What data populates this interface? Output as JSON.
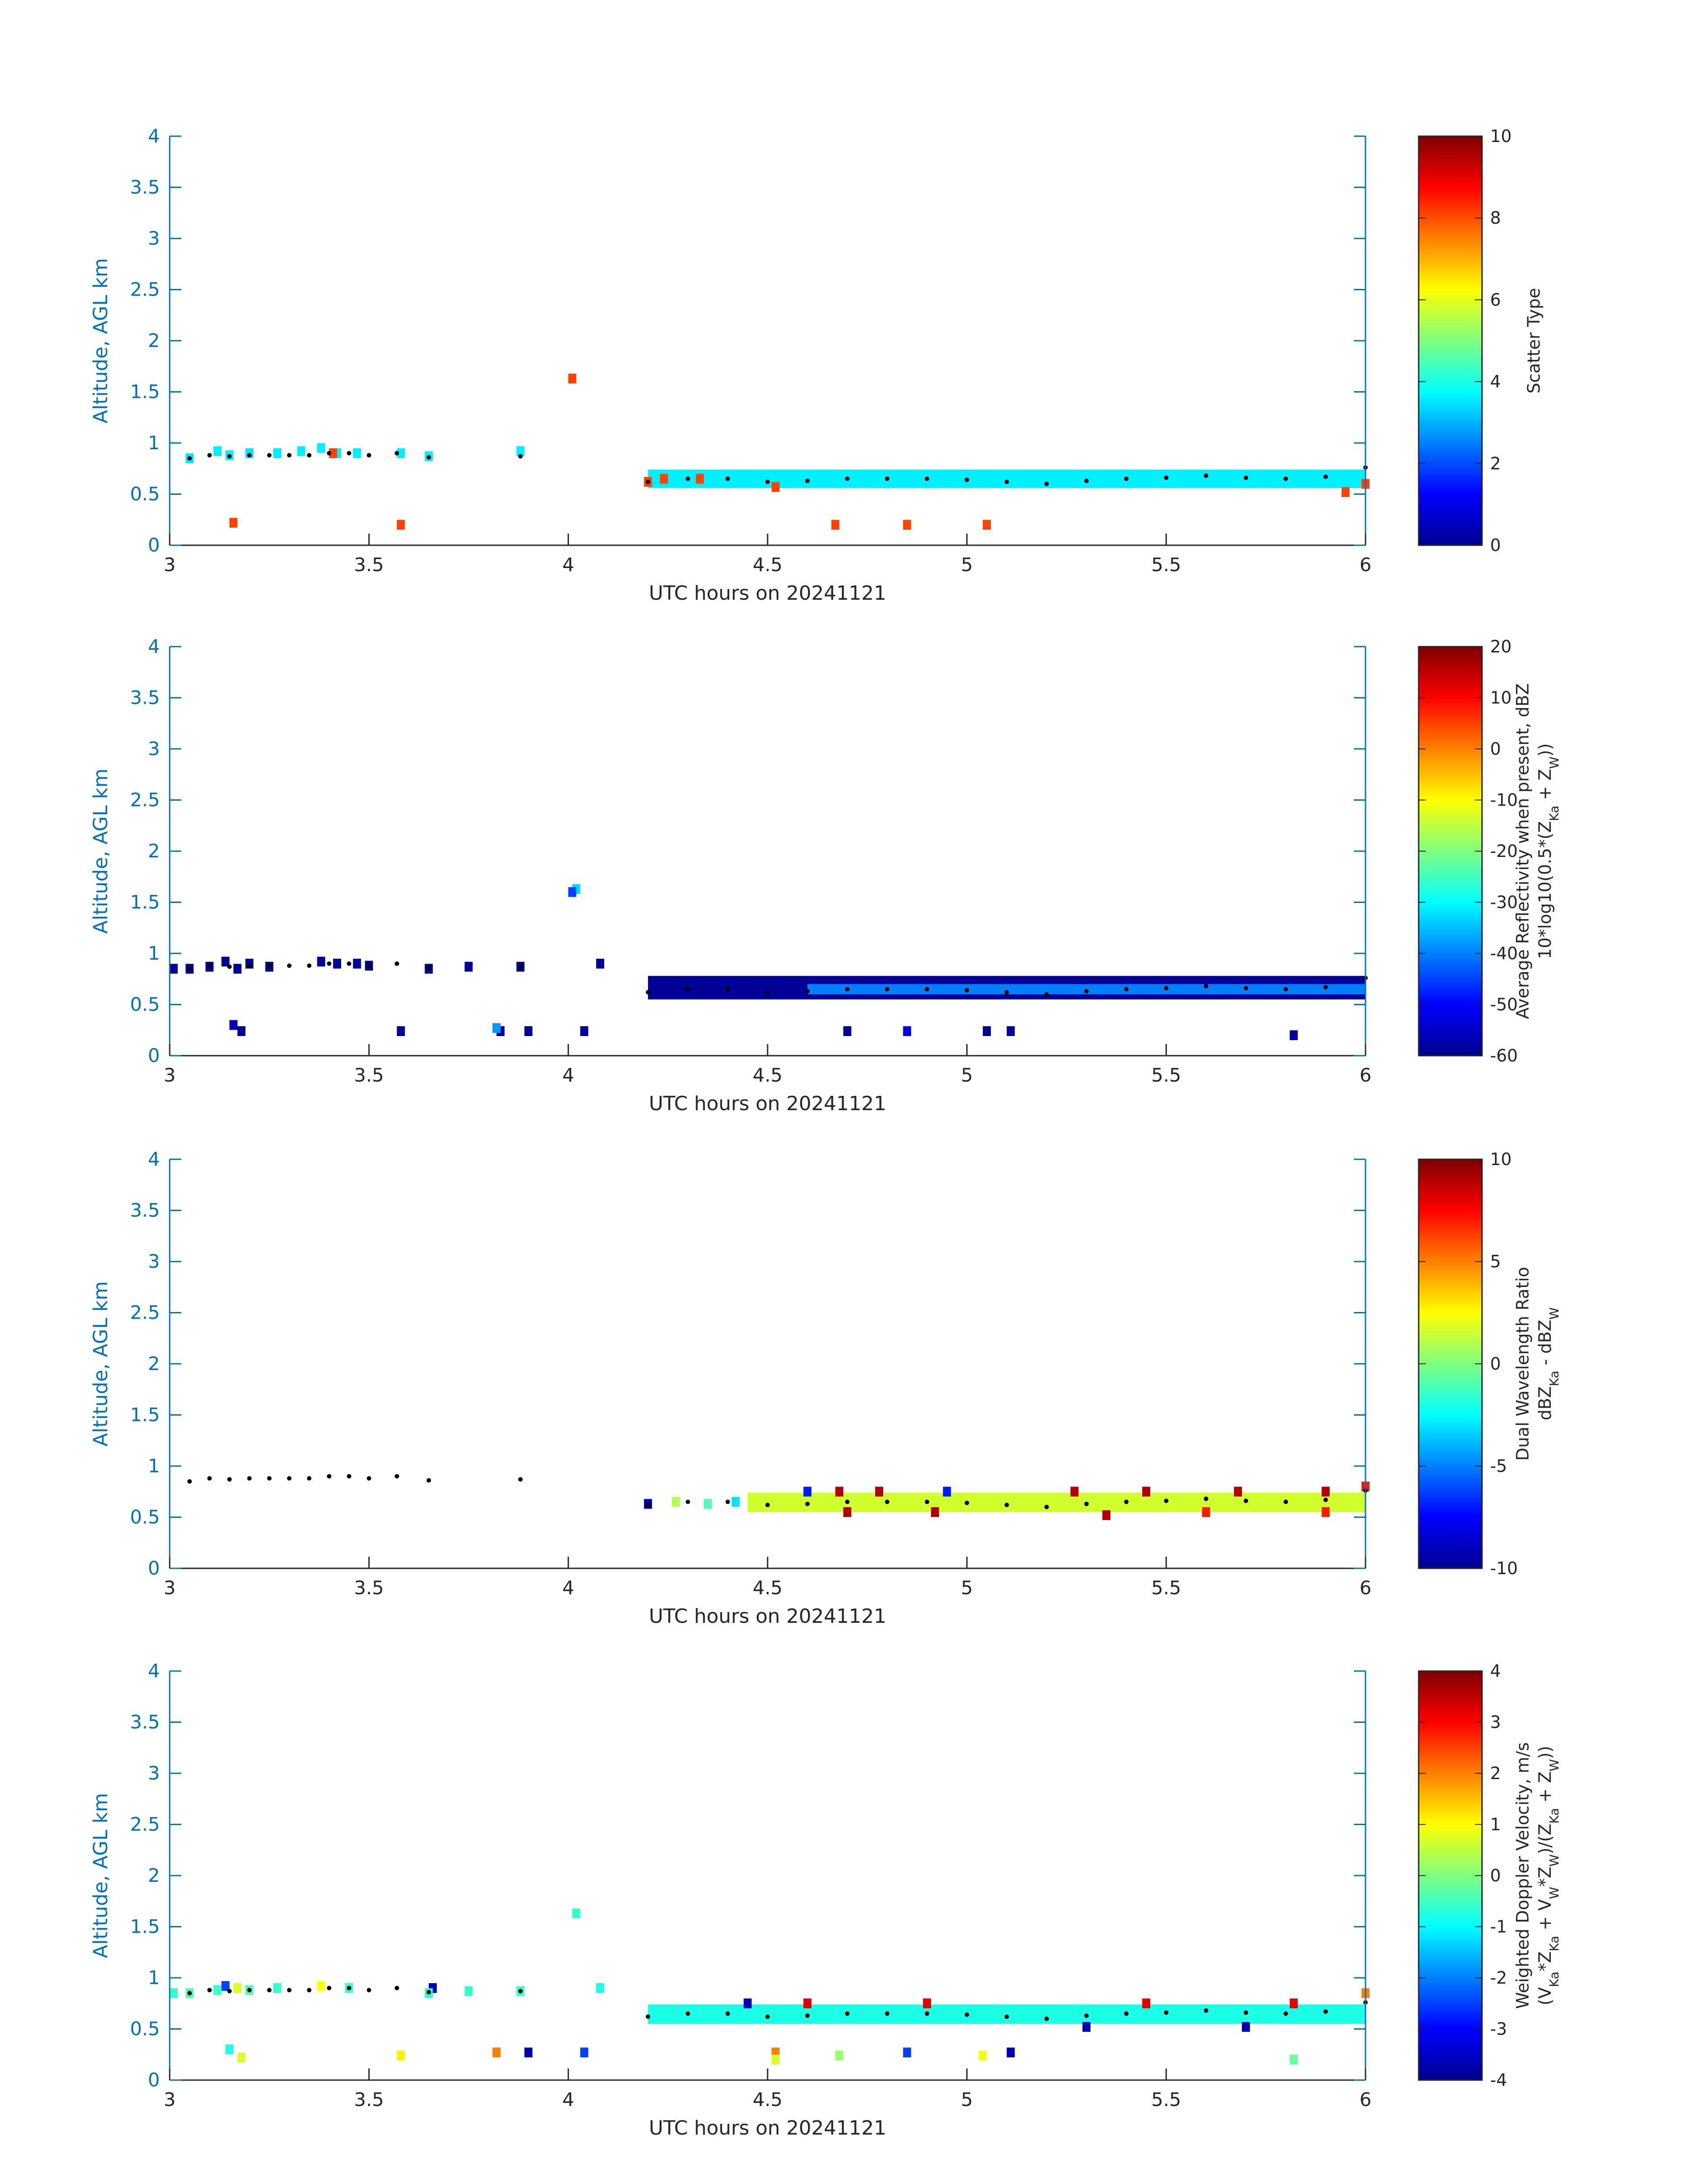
{
  "chart_data": [
    {
      "type": "heatmap",
      "xlabel": "UTC hours on 20241121",
      "ylabel": "Altitude, AGL km",
      "xlim": [
        3,
        6
      ],
      "ylim": [
        0,
        4
      ],
      "xticks": [
        "3",
        "3.5",
        "4",
        "4.5",
        "5",
        "5.5",
        "6"
      ],
      "yticks": [
        "0",
        "0.5",
        "1",
        "1.5",
        "2",
        "2.5",
        "3",
        "3.5",
        "4"
      ],
      "colorbar": {
        "label_lines": [
          "Scatter Type"
        ],
        "range": [
          0,
          10
        ],
        "ticks": [
          "0",
          "2",
          "4",
          "6",
          "8",
          "10"
        ],
        "colormap": "jet"
      },
      "cells": [
        [
          3.05,
          0.85,
          3.5
        ],
        [
          3.12,
          0.92,
          3.6
        ],
        [
          3.15,
          0.88,
          3.6
        ],
        [
          3.2,
          0.9,
          3.5
        ],
        [
          3.27,
          0.9,
          3.6
        ],
        [
          3.33,
          0.92,
          3.6
        ],
        [
          3.38,
          0.95,
          3.6
        ],
        [
          3.42,
          0.9,
          3.6
        ],
        [
          3.47,
          0.9,
          3.6
        ],
        [
          3.58,
          0.9,
          3.6
        ],
        [
          3.65,
          0.87,
          3.6
        ],
        [
          3.88,
          0.92,
          3.6
        ],
        [
          3.41,
          0.9,
          8.1
        ],
        [
          3.16,
          0.22,
          8.1
        ],
        [
          3.58,
          0.2,
          8.1
        ],
        [
          4.01,
          1.63,
          8.1
        ],
        [
          4.2,
          0.62,
          8.1
        ],
        [
          4.24,
          0.65,
          8.1
        ],
        [
          4.33,
          0.65,
          8.1
        ],
        [
          4.52,
          0.57,
          8.1
        ],
        [
          4.67,
          0.2,
          8.1
        ],
        [
          4.85,
          0.2,
          8.1
        ],
        [
          5.05,
          0.2,
          8.1
        ],
        [
          5.95,
          0.52,
          8.1
        ],
        [
          6.0,
          0.6,
          8.1
        ]
      ],
      "band": {
        "x": [
          4.2,
          6.0
        ],
        "bottom": 0.56,
        "top": 0.74,
        "value": 3.6
      },
      "line": {
        "x": [
          3.05,
          3.1,
          3.15,
          3.2,
          3.25,
          3.3,
          3.35,
          3.4,
          3.45,
          3.5,
          3.57,
          3.65,
          3.88,
          4.2,
          4.3,
          4.4,
          4.5,
          4.6,
          4.7,
          4.8,
          4.9,
          5.0,
          5.1,
          5.2,
          5.3,
          5.4,
          5.5,
          5.6,
          5.7,
          5.8,
          5.9,
          6.0
        ],
        "y": [
          0.85,
          0.88,
          0.87,
          0.88,
          0.88,
          0.88,
          0.88,
          0.9,
          0.9,
          0.88,
          0.9,
          0.86,
          0.87,
          0.62,
          0.65,
          0.65,
          0.62,
          0.63,
          0.65,
          0.65,
          0.65,
          0.64,
          0.62,
          0.6,
          0.63,
          0.65,
          0.66,
          0.68,
          0.66,
          0.65,
          0.67,
          0.76
        ]
      }
    },
    {
      "type": "heatmap",
      "xlabel": "UTC hours on 20241121",
      "ylabel": "Altitude, AGL km",
      "xlim": [
        3,
        6
      ],
      "ylim": [
        0,
        4
      ],
      "xticks": [
        "3",
        "3.5",
        "4",
        "4.5",
        "5",
        "5.5",
        "6"
      ],
      "yticks": [
        "0",
        "0.5",
        "1",
        "1.5",
        "2",
        "2.5",
        "3",
        "3.5",
        "4"
      ],
      "colorbar": {
        "label_lines": [
          "Average Reflectivity when present, dBZ",
          "10*log10(0.5*(Z_Ka + Z_W))"
        ],
        "range": [
          -60,
          20
        ],
        "ticks": [
          "-60",
          "-50",
          "-40",
          "-30",
          "-20",
          "-10",
          "0",
          "10",
          "20"
        ],
        "colormap": "jet"
      },
      "cells": [
        [
          3.01,
          0.85,
          -58
        ],
        [
          3.05,
          0.85,
          -58
        ],
        [
          3.1,
          0.87,
          -58
        ],
        [
          3.14,
          0.92,
          -58
        ],
        [
          3.17,
          0.85,
          -58
        ],
        [
          3.2,
          0.9,
          -58
        ],
        [
          3.25,
          0.87,
          -58
        ],
        [
          3.38,
          0.92,
          -58
        ],
        [
          3.42,
          0.9,
          -58
        ],
        [
          3.47,
          0.9,
          -58
        ],
        [
          3.5,
          0.88,
          -58
        ],
        [
          3.65,
          0.85,
          -58
        ],
        [
          3.75,
          0.87,
          -58
        ],
        [
          3.88,
          0.87,
          -58
        ],
        [
          4.08,
          0.9,
          -58
        ],
        [
          3.16,
          0.3,
          -55
        ],
        [
          3.18,
          0.24,
          -58
        ],
        [
          3.58,
          0.24,
          -58
        ],
        [
          3.83,
          0.24,
          -58
        ],
        [
          3.9,
          0.24,
          -58
        ],
        [
          4.04,
          0.24,
          -58
        ],
        [
          4.02,
          1.63,
          -33
        ],
        [
          4.01,
          1.6,
          -45
        ],
        [
          4.7,
          0.24,
          -58
        ],
        [
          4.85,
          0.24,
          -52
        ],
        [
          5.05,
          0.24,
          -58
        ],
        [
          5.11,
          0.24,
          -58
        ],
        [
          5.82,
          0.2,
          -58
        ],
        [
          3.82,
          0.27,
          -38
        ]
      ],
      "band": {
        "x": [
          4.2,
          6.0
        ],
        "bottom": 0.55,
        "top": 0.78,
        "value": -58,
        "inner_value": -40
      },
      "line": {
        "x": [
          3.05,
          3.1,
          3.15,
          3.2,
          3.25,
          3.3,
          3.35,
          3.4,
          3.45,
          3.5,
          3.57,
          3.65,
          3.88,
          4.2,
          4.3,
          4.4,
          4.5,
          4.6,
          4.7,
          4.8,
          4.9,
          5.0,
          5.1,
          5.2,
          5.3,
          5.4,
          5.5,
          5.6,
          5.7,
          5.8,
          5.9,
          6.0
        ],
        "y": [
          0.85,
          0.88,
          0.87,
          0.88,
          0.88,
          0.88,
          0.88,
          0.9,
          0.9,
          0.88,
          0.9,
          0.86,
          0.87,
          0.62,
          0.65,
          0.65,
          0.62,
          0.63,
          0.65,
          0.65,
          0.65,
          0.64,
          0.62,
          0.6,
          0.63,
          0.65,
          0.66,
          0.68,
          0.66,
          0.65,
          0.67,
          0.76
        ]
      }
    },
    {
      "type": "heatmap",
      "xlabel": "UTC hours on 20241121",
      "ylabel": "Altitude, AGL km",
      "xlim": [
        3,
        6
      ],
      "ylim": [
        0,
        4
      ],
      "xticks": [
        "3",
        "3.5",
        "4",
        "4.5",
        "5",
        "5.5",
        "6"
      ],
      "yticks": [
        "0",
        "0.5",
        "1",
        "1.5",
        "2",
        "2.5",
        "3",
        "3.5",
        "4"
      ],
      "colorbar": {
        "label_lines": [
          "Dual Wavelength Ratio",
          "dBZ_Ka - dBZ_W"
        ],
        "range": [
          -10,
          10
        ],
        "ticks": [
          "-10",
          "-5",
          "0",
          "5",
          "10"
        ],
        "colormap": "jet"
      },
      "cells": [
        [
          4.2,
          0.63,
          -9
        ],
        [
          4.27,
          0.65,
          1
        ],
        [
          4.35,
          0.63,
          -1
        ],
        [
          4.42,
          0.65,
          -3
        ],
        [
          4.6,
          0.75,
          -7
        ],
        [
          4.68,
          0.75,
          9
        ],
        [
          4.78,
          0.75,
          9
        ],
        [
          4.95,
          0.75,
          -7
        ],
        [
          5.27,
          0.75,
          9
        ],
        [
          5.45,
          0.75,
          9
        ],
        [
          5.68,
          0.75,
          9
        ],
        [
          5.9,
          0.75,
          9
        ],
        [
          6.0,
          0.8,
          7
        ],
        [
          4.7,
          0.55,
          9
        ],
        [
          4.92,
          0.55,
          9
        ],
        [
          5.35,
          0.52,
          9
        ],
        [
          5.6,
          0.55,
          7
        ],
        [
          5.9,
          0.55,
          7
        ]
      ],
      "band": {
        "x": [
          4.45,
          6.0
        ],
        "bottom": 0.55,
        "top": 0.74,
        "value": 1.6
      },
      "line": {
        "x": [
          3.05,
          3.1,
          3.15,
          3.2,
          3.25,
          3.3,
          3.35,
          3.4,
          3.45,
          3.5,
          3.57,
          3.65,
          3.88,
          4.2,
          4.3,
          4.4,
          4.5,
          4.6,
          4.7,
          4.8,
          4.9,
          5.0,
          5.1,
          5.2,
          5.3,
          5.4,
          5.5,
          5.6,
          5.7,
          5.8,
          5.9,
          6.0
        ],
        "y": [
          0.85,
          0.88,
          0.87,
          0.88,
          0.88,
          0.88,
          0.88,
          0.9,
          0.9,
          0.88,
          0.9,
          0.86,
          0.87,
          0.62,
          0.65,
          0.65,
          0.62,
          0.63,
          0.65,
          0.65,
          0.65,
          0.64,
          0.62,
          0.6,
          0.63,
          0.65,
          0.66,
          0.68,
          0.66,
          0.65,
          0.67,
          0.76
        ]
      }
    },
    {
      "type": "heatmap",
      "xlabel": "UTC hours on 20241121",
      "ylabel": "Altitude, AGL km",
      "xlim": [
        3,
        6
      ],
      "ylim": [
        0,
        4
      ],
      "xticks": [
        "3",
        "3.5",
        "4",
        "4.5",
        "5",
        "5.5",
        "6"
      ],
      "yticks": [
        "0",
        "0.5",
        "1",
        "1.5",
        "2",
        "2.5",
        "3",
        "3.5",
        "4"
      ],
      "colorbar": {
        "label_lines": [
          "Weighted Doppler Velocity, m/s",
          "(V_Ka*Z_Ka + V_W*Z_W)/(Z_Ka + Z_W))"
        ],
        "range": [
          -4,
          4
        ],
        "ticks": [
          "-4",
          "-3",
          "-2",
          "-1",
          "0",
          "1",
          "2",
          "3",
          "4"
        ],
        "colormap": "jet"
      },
      "cells": [
        [
          3.01,
          0.85,
          -0.6
        ],
        [
          3.05,
          0.85,
          -0.4
        ],
        [
          3.12,
          0.88,
          -0.6
        ],
        [
          3.14,
          0.92,
          -2.5
        ],
        [
          3.17,
          0.9,
          0.7
        ],
        [
          3.2,
          0.88,
          -0.4
        ],
        [
          3.27,
          0.9,
          -0.6
        ],
        [
          3.38,
          0.92,
          1.0
        ],
        [
          3.45,
          0.9,
          -0.6
        ],
        [
          3.66,
          0.9,
          -3.5
        ],
        [
          3.65,
          0.85,
          -0.6
        ],
        [
          3.75,
          0.87,
          -0.6
        ],
        [
          3.88,
          0.87,
          -0.6
        ],
        [
          4.08,
          0.9,
          -0.8
        ],
        [
          4.02,
          1.63,
          -0.6
        ],
        [
          3.15,
          0.3,
          -0.8
        ],
        [
          3.18,
          0.22,
          0.7
        ],
        [
          3.58,
          0.24,
          1.1
        ],
        [
          3.82,
          0.27,
          2.0
        ],
        [
          3.9,
          0.27,
          -3.6
        ],
        [
          4.04,
          0.27,
          -2.5
        ],
        [
          4.52,
          0.27,
          2.0
        ],
        [
          4.52,
          0.2,
          0.7
        ],
        [
          4.68,
          0.24,
          0.2
        ],
        [
          4.85,
          0.27,
          -2.5
        ],
        [
          5.04,
          0.24,
          0.9
        ],
        [
          5.11,
          0.27,
          -3.6
        ],
        [
          5.82,
          0.2,
          -0.2
        ],
        [
          4.6,
          0.75,
          3.2
        ],
        [
          4.9,
          0.75,
          3.2
        ],
        [
          5.45,
          0.75,
          3.2
        ],
        [
          5.82,
          0.75,
          3.2
        ],
        [
          6.0,
          0.85,
          2.0
        ],
        [
          4.45,
          0.75,
          -3.6
        ],
        [
          5.3,
          0.52,
          -3.6
        ],
        [
          5.7,
          0.52,
          -3.6
        ]
      ],
      "band": {
        "x": [
          4.2,
          6.0
        ],
        "bottom": 0.55,
        "top": 0.74,
        "value": -0.8
      },
      "line": {
        "x": [
          3.05,
          3.1,
          3.15,
          3.2,
          3.25,
          3.3,
          3.35,
          3.4,
          3.45,
          3.5,
          3.57,
          3.65,
          3.88,
          4.2,
          4.3,
          4.4,
          4.5,
          4.6,
          4.7,
          4.8,
          4.9,
          5.0,
          5.1,
          5.2,
          5.3,
          5.4,
          5.5,
          5.6,
          5.7,
          5.8,
          5.9,
          6.0
        ],
        "y": [
          0.85,
          0.88,
          0.87,
          0.88,
          0.88,
          0.88,
          0.88,
          0.9,
          0.9,
          0.88,
          0.9,
          0.86,
          0.87,
          0.62,
          0.65,
          0.65,
          0.62,
          0.63,
          0.65,
          0.65,
          0.65,
          0.64,
          0.62,
          0.6,
          0.63,
          0.65,
          0.66,
          0.68,
          0.66,
          0.65,
          0.67,
          0.76
        ]
      }
    }
  ]
}
